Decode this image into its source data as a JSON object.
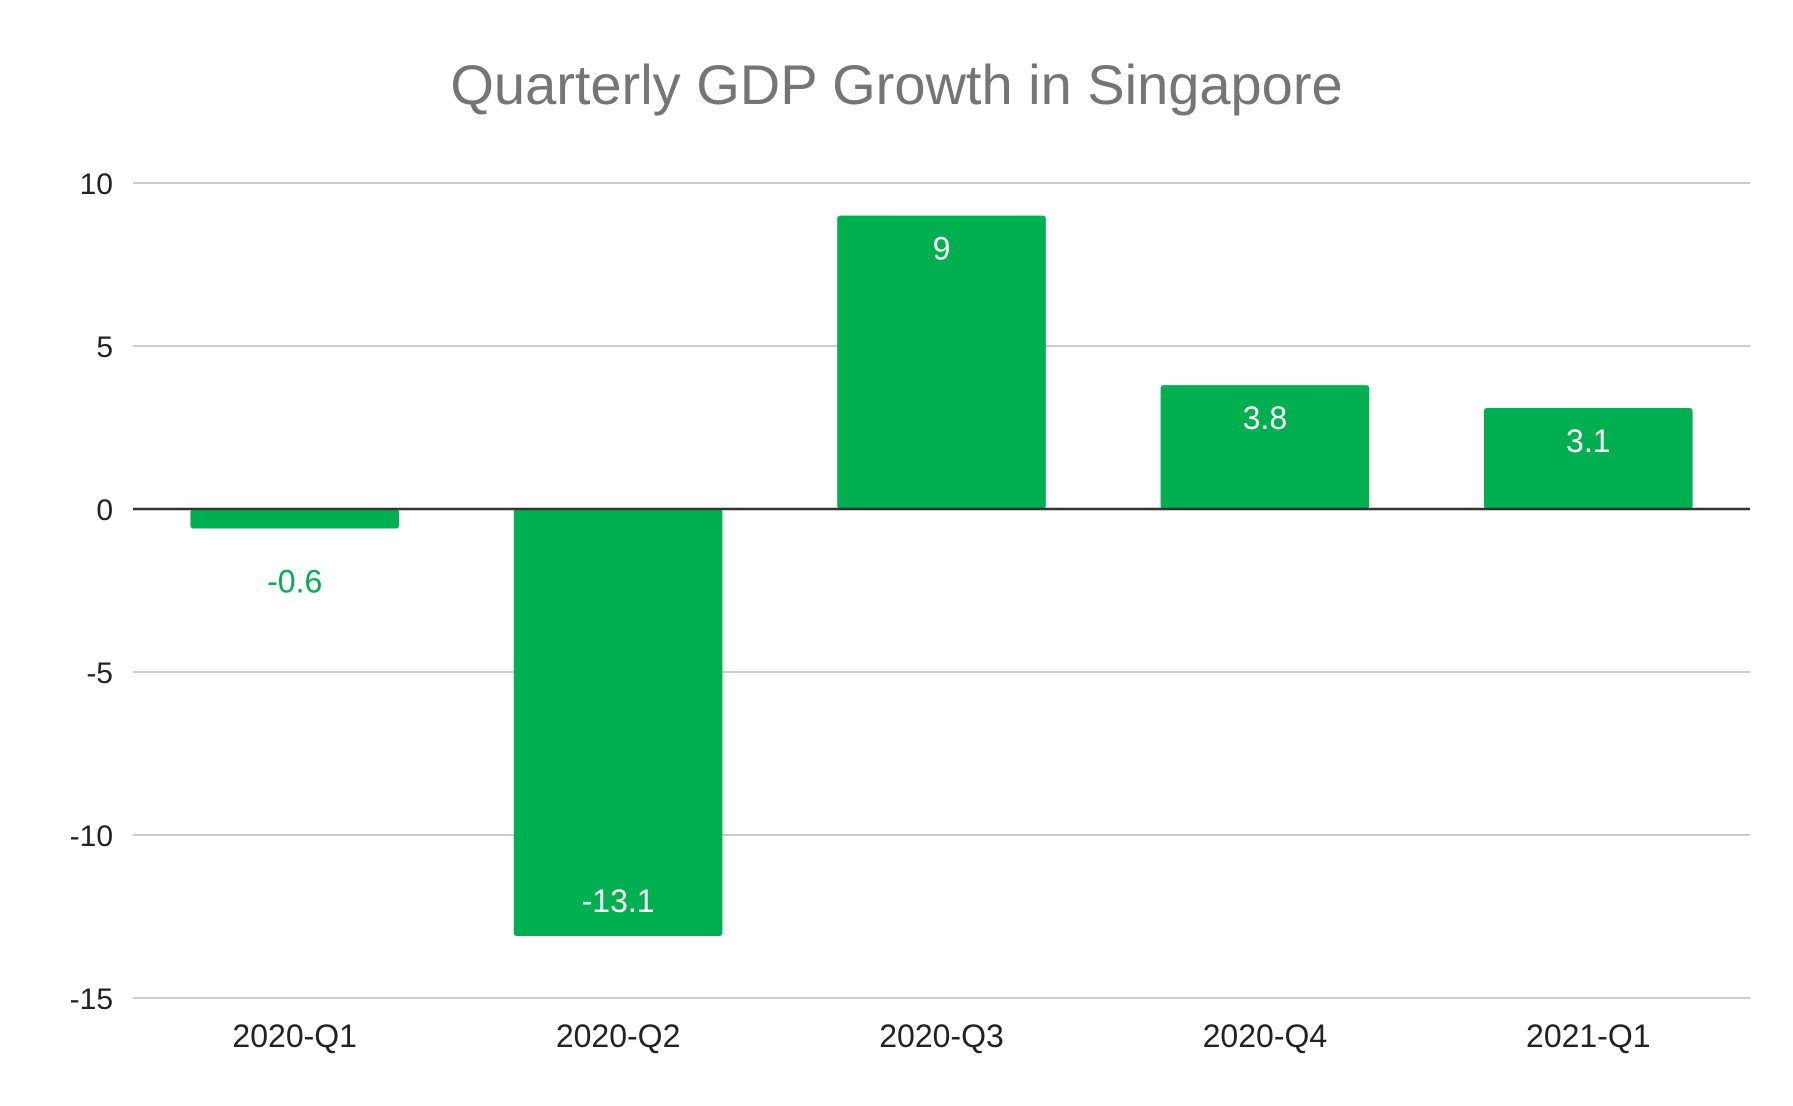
{
  "chart_data": {
    "type": "bar",
    "title": "Quarterly GDP Growth in Singapore",
    "xlabel": "",
    "ylabel": "",
    "categories": [
      "2020-Q1",
      "2020-Q2",
      "2020-Q3",
      "2020-Q4",
      "2021-Q1"
    ],
    "values": [
      -0.6,
      -13.1,
      9,
      3.8,
      3.1
    ],
    "value_labels": [
      "-0.6",
      "-13.1",
      "9",
      "3.8",
      "3.1"
    ],
    "ylim": [
      -15,
      10
    ],
    "yticks": [
      10,
      5,
      0,
      -5,
      -10,
      -15
    ],
    "ytick_labels": [
      "10",
      "5",
      "0",
      "-5",
      "-10",
      "-15"
    ],
    "grid": true,
    "legend": "none",
    "colors": {
      "bar": "#00b050",
      "label_inside": "#ffffff",
      "label_outside": "#00b050",
      "gridline": "#cccccc",
      "baseline": "#333333",
      "title": "#757575"
    }
  }
}
